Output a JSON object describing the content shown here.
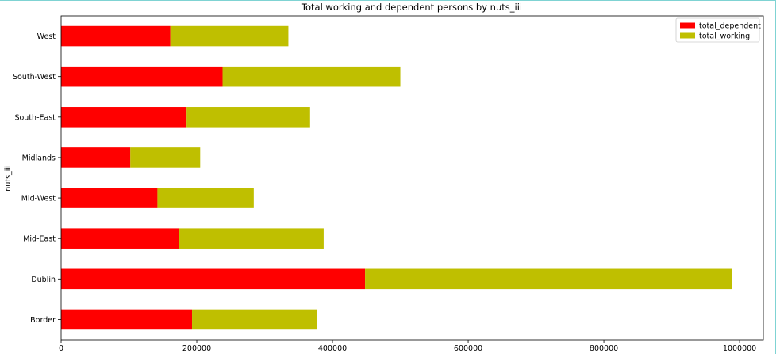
{
  "chart_data": {
    "type": "bar",
    "orientation": "horizontal",
    "stacked": true,
    "title": "Total working and dependent persons by nuts_iii",
    "xlabel": "",
    "ylabel": "nuts_iii",
    "categories": [
      "Border",
      "Dublin",
      "Mid-East",
      "Mid-West",
      "Midlands",
      "South-East",
      "South-West",
      "West"
    ],
    "series": [
      {
        "name": "total_dependent",
        "color": "#ff0000",
        "values": [
          193000,
          448000,
          174000,
          142000,
          102000,
          185000,
          238000,
          161000
        ]
      },
      {
        "name": "total_working",
        "color": "#bfbf00",
        "values": [
          184000,
          541000,
          213000,
          142000,
          103000,
          182000,
          262000,
          174000
        ]
      }
    ],
    "xlim": [
      0,
      1035000
    ],
    "xticks": [
      0,
      200000,
      400000,
      600000,
      800000,
      1000000
    ],
    "xtick_labels": [
      "0",
      "200000",
      "400000",
      "600000",
      "800000",
      "1000000"
    ],
    "grid": false,
    "legend_position": "top-right"
  }
}
